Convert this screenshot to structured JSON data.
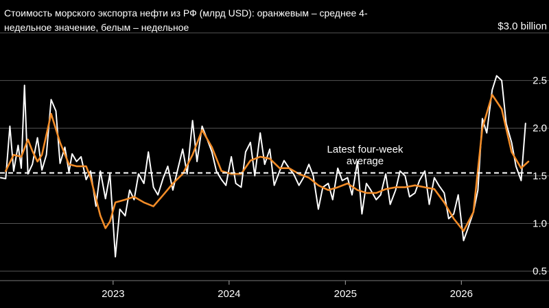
{
  "chart_data": {
    "type": "line",
    "title": "Стоимость морского экспорта нефти из РФ (млрд USD): оранжевым – среднее 4-недельное значение, белым – недельное",
    "unit_label": "$3.0 billion",
    "y_ticks": [
      "2.5",
      "2.0",
      "1.5",
      "1.0",
      "0.5"
    ],
    "y_tick_values": [
      2.5,
      2.0,
      1.5,
      1.0,
      0.5
    ],
    "x_ticks": [
      "2023",
      "2024",
      "2025",
      "2026"
    ],
    "x_tick_values": [
      "2023-01-01",
      "2024-01-01",
      "2025-01-01",
      "2026-01-01"
    ],
    "ylim": [
      0.4,
      3.0
    ],
    "xlim": [
      "2022-01-10",
      "2026-07-31"
    ],
    "grid": true,
    "reference_line": {
      "value": 1.53,
      "style": "dashed"
    },
    "annotation": "Latest four-week average",
    "series": [
      {
        "color": "#ffffff",
        "x": [
          "2022-01-12",
          "2022-01-28",
          "2022-02-10",
          "2022-02-22",
          "2022-03-08",
          "2022-03-18",
          "2022-03-28",
          "2022-04-08",
          "2022-04-22",
          "2022-05-08",
          "2022-05-22",
          "2022-06-05",
          "2022-06-20",
          "2022-07-05",
          "2022-07-18",
          "2022-08-02",
          "2022-08-15",
          "2022-08-25",
          "2022-09-08",
          "2022-09-22",
          "2022-10-08",
          "2022-10-22",
          "2022-11-08",
          "2022-11-22",
          "2022-12-08",
          "2022-12-22",
          "2023-01-08",
          "2023-01-22",
          "2023-02-08",
          "2023-02-22",
          "2023-03-08",
          "2023-03-22",
          "2023-04-08",
          "2023-04-22",
          "2023-05-08",
          "2023-05-22",
          "2023-06-08",
          "2023-06-22",
          "2023-07-08",
          "2023-07-22",
          "2023-08-08",
          "2023-08-22",
          "2023-09-08",
          "2023-09-22",
          "2023-10-08",
          "2023-10-22",
          "2023-11-08",
          "2023-11-22",
          "2023-12-08",
          "2023-12-22",
          "2024-01-08",
          "2024-01-22",
          "2024-02-08",
          "2024-02-22",
          "2024-03-08",
          "2024-03-22",
          "2024-04-08",
          "2024-04-22",
          "2024-05-08",
          "2024-05-22",
          "2024-06-08",
          "2024-06-22",
          "2024-07-08",
          "2024-07-22",
          "2024-08-08",
          "2024-08-22",
          "2024-09-08",
          "2024-09-22",
          "2024-10-08",
          "2024-10-22",
          "2024-11-08",
          "2024-11-22",
          "2024-12-08",
          "2024-12-22",
          "2025-01-08",
          "2025-01-22",
          "2025-02-08",
          "2025-02-22",
          "2025-03-08",
          "2025-03-22",
          "2025-04-08",
          "2025-04-22",
          "2025-05-08",
          "2025-05-22",
          "2025-06-08",
          "2025-06-22",
          "2025-07-08",
          "2025-07-22",
          "2025-08-08",
          "2025-08-22",
          "2025-09-08",
          "2025-09-22",
          "2025-10-08",
          "2025-10-22",
          "2025-11-08",
          "2025-11-22",
          "2025-12-08",
          "2025-12-22",
          "2026-01-08",
          "2026-01-22",
          "2026-02-08",
          "2026-02-22",
          "2026-03-08",
          "2026-03-22",
          "2026-04-08",
          "2026-04-22",
          "2026-05-08",
          "2026-05-22",
          "2026-06-08",
          "2026-06-22",
          "2026-07-08",
          "2026-07-22"
        ],
        "values": [
          1.48,
          1.47,
          2.02,
          1.55,
          1.82,
          1.58,
          2.45,
          1.52,
          1.62,
          1.9,
          1.56,
          1.72,
          2.3,
          2.18,
          1.63,
          1.8,
          1.54,
          1.73,
          1.65,
          1.7,
          1.46,
          1.55,
          1.18,
          1.55,
          1.26,
          1.52,
          0.65,
          1.15,
          1.08,
          1.35,
          1.25,
          1.52,
          1.42,
          1.75,
          1.38,
          1.3,
          1.48,
          1.6,
          1.35,
          1.55,
          1.78,
          1.52,
          2.08,
          1.65,
          2.02,
          1.9,
          1.75,
          1.55,
          1.46,
          1.4,
          1.7,
          1.42,
          1.38,
          1.75,
          1.85,
          1.5,
          1.95,
          1.62,
          1.78,
          1.4,
          1.55,
          1.66,
          1.58,
          1.52,
          1.4,
          1.48,
          1.62,
          1.5,
          1.15,
          1.38,
          1.42,
          1.25,
          1.58,
          1.45,
          1.48,
          1.3,
          1.65,
          1.1,
          1.42,
          1.35,
          1.25,
          1.3,
          1.52,
          1.2,
          1.35,
          1.55,
          1.5,
          1.28,
          1.32,
          1.45,
          1.55,
          1.2,
          1.48,
          1.4,
          1.32,
          1.05,
          1.1,
          1.3,
          0.82,
          0.95,
          1.12,
          1.35,
          2.1,
          1.95,
          2.4,
          2.55,
          2.5,
          2.05,
          1.85,
          1.6,
          1.45,
          2.05
        ]
      },
      {
        "color": "#f28c28",
        "x": [
          "2022-01-28",
          "2022-02-22",
          "2022-03-18",
          "2022-04-08",
          "2022-04-22",
          "2022-05-08",
          "2022-05-22",
          "2022-06-20",
          "2022-07-18",
          "2022-08-15",
          "2022-09-08",
          "2022-10-08",
          "2022-10-22",
          "2022-11-22",
          "2022-12-08",
          "2022-12-22",
          "2023-01-08",
          "2023-02-08",
          "2023-03-08",
          "2023-04-08",
          "2023-05-08",
          "2023-06-08",
          "2023-07-08",
          "2023-08-08",
          "2023-09-08",
          "2023-10-08",
          "2023-11-08",
          "2023-12-08",
          "2024-01-08",
          "2024-02-08",
          "2024-03-08",
          "2024-04-08",
          "2024-05-08",
          "2024-06-08",
          "2024-07-08",
          "2024-08-08",
          "2024-09-08",
          "2024-10-08",
          "2024-11-08",
          "2024-12-08",
          "2025-01-08",
          "2025-02-08",
          "2025-03-08",
          "2025-04-08",
          "2025-05-08",
          "2025-06-08",
          "2025-07-08",
          "2025-08-08",
          "2025-09-08",
          "2025-10-08",
          "2025-11-08",
          "2025-12-08",
          "2026-01-08",
          "2026-02-08",
          "2026-03-08",
          "2026-04-08",
          "2026-05-08",
          "2026-06-08",
          "2026-07-08",
          "2026-07-31"
        ],
        "values": [
          1.55,
          1.72,
          1.7,
          1.88,
          1.76,
          1.65,
          1.72,
          2.15,
          1.85,
          1.62,
          1.6,
          1.6,
          1.48,
          1.08,
          0.95,
          1.02,
          1.22,
          1.25,
          1.28,
          1.22,
          1.18,
          1.3,
          1.42,
          1.52,
          1.72,
          1.98,
          1.8,
          1.55,
          1.52,
          1.52,
          1.66,
          1.7,
          1.68,
          1.58,
          1.58,
          1.52,
          1.48,
          1.4,
          1.35,
          1.38,
          1.42,
          1.35,
          1.32,
          1.32,
          1.36,
          1.38,
          1.38,
          1.4,
          1.38,
          1.36,
          1.22,
          1.05,
          0.92,
          1.12,
          2.0,
          2.35,
          2.2,
          1.75,
          1.58,
          1.65
        ]
      }
    ]
  }
}
